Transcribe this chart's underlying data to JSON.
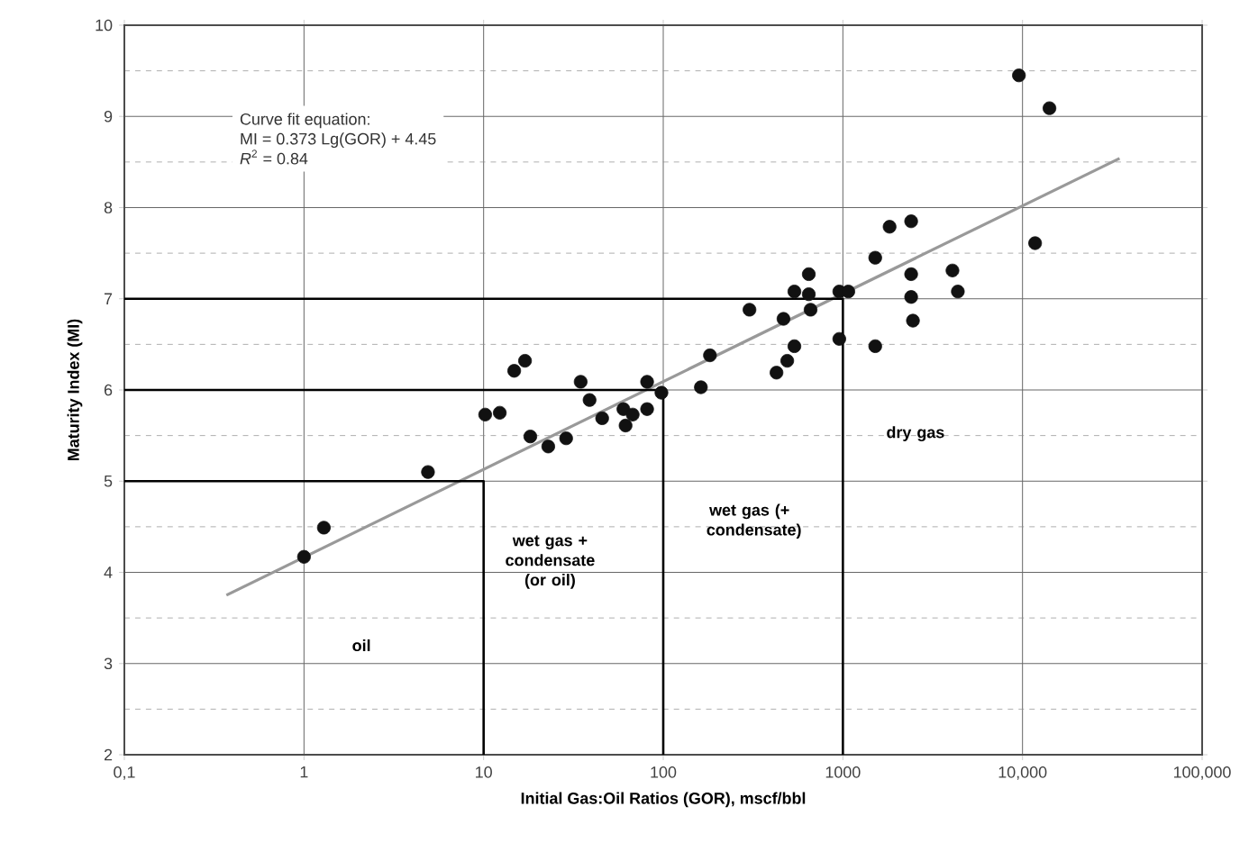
{
  "chart_data": {
    "type": "scatter",
    "xlabel": "Initial Gas:Oil Ratios (GOR), mscf/bbl",
    "ylabel": "Maturity Index (MI)",
    "log": "x",
    "grid": true,
    "xlim": [
      0.1,
      100000
    ],
    "ylim": [
      2,
      10
    ],
    "xticks": [
      {
        "value": 0.1,
        "label": "0,1"
      },
      1,
      10,
      100,
      1000,
      {
        "value": 10000,
        "label": "10,000"
      },
      {
        "value": 100000,
        "label": "100,000"
      }
    ],
    "yticks": [
      2,
      3,
      4,
      5,
      6,
      7,
      8,
      9,
      10
    ],
    "series": [
      {
        "marker": "circle",
        "color": "#111111",
        "x": [
          1.0,
          1.29,
          4.9,
          10.2,
          12.3,
          14.8,
          17.0,
          18.2,
          22.9,
          28.8,
          34.7,
          38.9,
          45.7,
          60,
          61.7,
          67.6,
          81.3,
          81.3,
          97.7,
          162,
          182,
          302,
          427,
          467,
          490,
          537,
          537,
          646,
          646,
          661,
          955,
          955,
          1072,
          1514,
          1514,
          1820,
          2399,
          2399,
          2399,
          2455,
          4074,
          4365,
          9550,
          11750,
          14125
        ],
        "values": [
          4.17,
          4.49,
          5.1,
          5.73,
          5.75,
          6.21,
          6.32,
          5.49,
          5.38,
          5.47,
          6.09,
          5.89,
          5.69,
          5.79,
          5.61,
          5.73,
          5.79,
          6.09,
          5.97,
          6.03,
          6.38,
          6.88,
          6.19,
          6.78,
          6.32,
          6.48,
          7.08,
          7.27,
          7.05,
          6.88,
          6.56,
          7.08,
          7.08,
          6.48,
          7.45,
          7.79,
          7.85,
          7.27,
          7.02,
          6.76,
          7.31,
          7.08,
          9.45,
          7.61,
          9.09
        ]
      },
      {
        "type": "line",
        "marker": "none",
        "color": "#999999",
        "x": [
          0.37,
          34700
        ],
        "values": [
          3.75,
          8.54
        ]
      },
      {
        "type": "line",
        "marker": "none",
        "color": "#000000",
        "x": [
          0.1,
          10,
          10
        ],
        "values": [
          5,
          5,
          2
        ]
      },
      {
        "type": "line",
        "marker": "none",
        "color": "#000000",
        "x": [
          0.1,
          100,
          100
        ],
        "values": [
          6,
          6,
          2
        ]
      },
      {
        "type": "line",
        "marker": "none",
        "color": "#000000",
        "x": [
          0.1,
          1000,
          1000
        ],
        "values": [
          7,
          7,
          2
        ]
      }
    ],
    "annotations": [
      "Curve fit equation:",
      "MI = 0.373 Lg(GOR) + 4.45",
      "*R*$^{2}$ = 0.84",
      "oil",
      "wet gas + condensate (or oil)",
      "wet gas (+ condensate)",
      "dry gas"
    ]
  }
}
